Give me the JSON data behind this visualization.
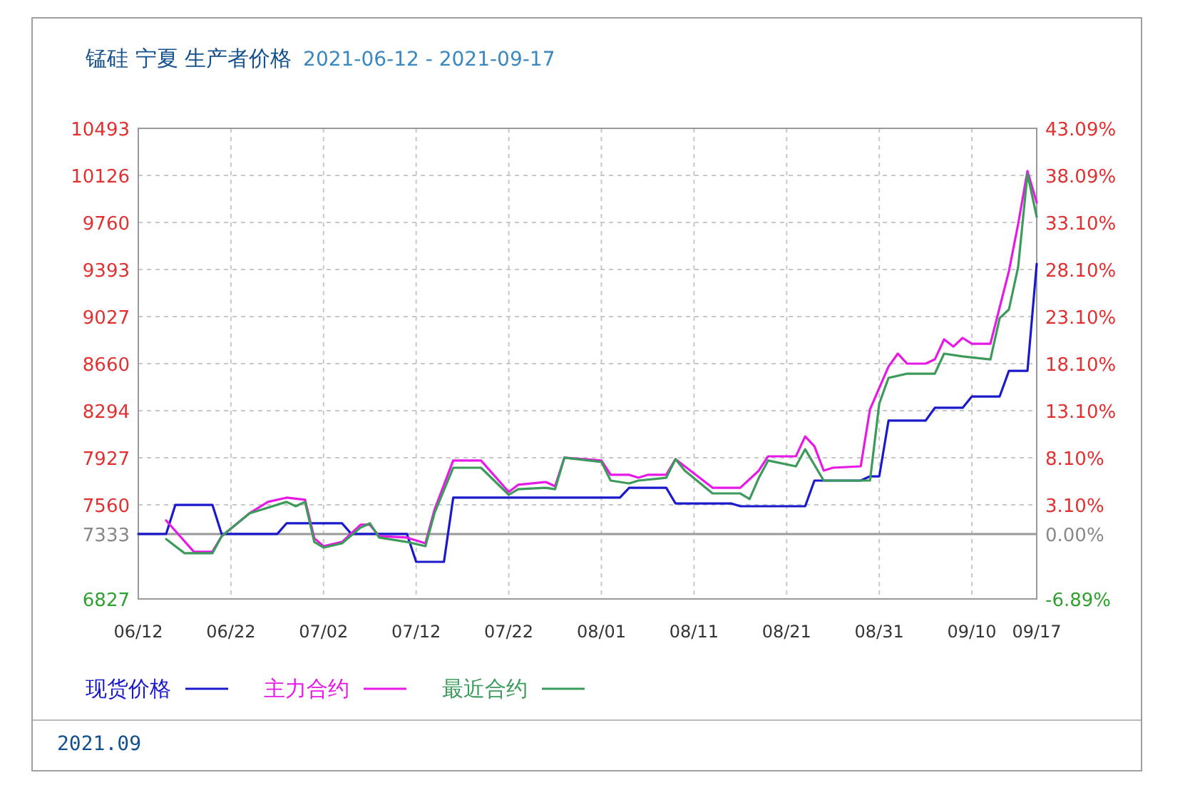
{
  "chart_data": {
    "type": "line",
    "title": "锰硅 宁夏 生产者价格",
    "subtitle": "2021-06-12 - 2021-09-17",
    "xlim": [
      "--06-12",
      "--09-17"
    ],
    "xticks": [
      {
        "value": "--06-12",
        "label": "06/12"
      },
      {
        "value": "--06-22",
        "label": "06/22"
      },
      {
        "value": "--07-02",
        "label": "07/02"
      },
      {
        "value": "--07-12",
        "label": "07/12"
      },
      {
        "value": "--07-22",
        "label": "07/22"
      },
      {
        "value": "--08-01",
        "label": "08/01"
      },
      {
        "value": "--08-11",
        "label": "08/11"
      },
      {
        "value": "--08-21",
        "label": "08/21"
      },
      {
        "value": "--08-31",
        "label": "08/31"
      },
      {
        "value": "--09-10",
        "label": "09/10"
      },
      {
        "value": "--09-17",
        "label": "09/17"
      }
    ],
    "ylim": [
      6827,
      10493
    ],
    "yticks": [
      6827,
      7333,
      7560,
      7927,
      8294,
      8660,
      9027,
      9393,
      9760,
      10126,
      10493
    ],
    "y2lim": [
      -6.89,
      43.09
    ],
    "y2ticks": [
      {
        "value": -6.89,
        "label": "-6.89%"
      },
      {
        "value": 0,
        "label": "0.00%"
      },
      {
        "value": 3.1,
        "label": "3.10%"
      },
      {
        "value": 8.1,
        "label": "8.10%"
      },
      {
        "value": 13.1,
        "label": "13.10%"
      },
      {
        "value": 18.1,
        "label": "18.10%"
      },
      {
        "value": 23.1,
        "label": "23.10%"
      },
      {
        "value": 28.1,
        "label": "28.10%"
      },
      {
        "value": 33.1,
        "label": "33.10%"
      },
      {
        "value": 38.09,
        "label": "38.09%"
      },
      {
        "value": 43.09,
        "label": "43.09%"
      }
    ],
    "grid": true,
    "legend": "bottom",
    "ref_lines": [
      {
        "axis": "y",
        "value": 7333,
        "color": "#999999"
      }
    ],
    "annotations": [
      "2021.09"
    ],
    "series": [
      {
        "name": "现货价格",
        "color": "#1a1acc",
        "x": [
          "--06-12",
          "--06-15",
          "--06-16",
          "--06-20",
          "--06-21",
          "--06-27",
          "--06-28",
          "--07-04",
          "--07-05",
          "--07-11",
          "--07-12",
          "--07-15",
          "--07-16",
          "--08-03",
          "--08-04",
          "--08-08",
          "--08-09",
          "--08-15",
          "--08-16",
          "--08-23",
          "--08-24",
          "--08-29",
          "--08-30",
          "--08-31",
          "--09-01",
          "--09-05",
          "--09-06",
          "--09-09",
          "--09-10",
          "--09-13",
          "--09-14",
          "--09-16",
          "--09-17"
        ],
        "values": [
          7333,
          7333,
          7560,
          7560,
          7333,
          7333,
          7416,
          7416,
          7333,
          7333,
          7116,
          7116,
          7616,
          7616,
          7693,
          7693,
          7571,
          7571,
          7549,
          7549,
          7749,
          7749,
          7782,
          7782,
          8216,
          8216,
          8316,
          8316,
          8404,
          8404,
          8604,
          8604,
          9437
        ]
      },
      {
        "name": "主力合约",
        "color": "#e619e6",
        "x": [
          "--06-15",
          "--06-18",
          "--06-20",
          "--06-21",
          "--06-24",
          "--06-26",
          "--06-28",
          "--06-30",
          "--07-01",
          "--07-02",
          "--07-04",
          "--07-06",
          "--07-07",
          "--07-08",
          "--07-11",
          "--07-13",
          "--07-14",
          "--07-16",
          "--07-19",
          "--07-22",
          "--07-23",
          "--07-26",
          "--07-27",
          "--07-28",
          "--08-01",
          "--08-02",
          "--08-04",
          "--08-05",
          "--08-06",
          "--08-08",
          "--08-09",
          "--08-10",
          "--08-13",
          "--08-16",
          "--08-18",
          "--08-19",
          "--08-22",
          "--08-23",
          "--08-24",
          "--08-25",
          "--08-26",
          "--08-29",
          "--08-30",
          "--09-01",
          "--09-02",
          "--09-03",
          "--09-05",
          "--09-06",
          "--09-07",
          "--09-08",
          "--09-09",
          "--09-10",
          "--09-12",
          "--09-14",
          "--09-15",
          "--09-16",
          "--09-17"
        ],
        "values": [
          7438,
          7194,
          7194,
          7316,
          7494,
          7583,
          7616,
          7600,
          7300,
          7238,
          7271,
          7405,
          7405,
          7316,
          7305,
          7260,
          7527,
          7905,
          7905,
          7660,
          7716,
          7738,
          7705,
          7927,
          7905,
          7794,
          7794,
          7771,
          7794,
          7794,
          7916,
          7860,
          7693,
          7693,
          7827,
          7938,
          7938,
          8093,
          8016,
          7827,
          7849,
          7860,
          8304,
          8637,
          8738,
          8660,
          8660,
          8693,
          8849,
          8793,
          8860,
          8815,
          8815,
          9382,
          9749,
          10160,
          9915
        ]
      },
      {
        "name": "最近合约",
        "color": "#3c9a5a",
        "x": [
          "--06-15",
          "--06-17",
          "--06-20",
          "--06-21",
          "--06-24",
          "--06-28",
          "--06-29",
          "--06-30",
          "--07-01",
          "--07-02",
          "--07-04",
          "--07-06",
          "--07-07",
          "--07-08",
          "--07-11",
          "--07-13",
          "--07-14",
          "--07-16",
          "--07-19",
          "--07-22",
          "--07-23",
          "--07-26",
          "--07-27",
          "--07-28",
          "--08-01",
          "--08-02",
          "--08-04",
          "--08-05",
          "--08-08",
          "--08-09",
          "--08-10",
          "--08-13",
          "--08-16",
          "--08-17",
          "--08-18",
          "--08-19",
          "--08-22",
          "--08-23",
          "--08-25",
          "--08-30",
          "--08-31",
          "--09-01",
          "--09-03",
          "--09-06",
          "--09-07",
          "--09-09",
          "--09-12",
          "--09-13",
          "--09-14",
          "--09-15",
          "--09-16",
          "--09-17"
        ],
        "values": [
          7293,
          7183,
          7183,
          7316,
          7494,
          7583,
          7549,
          7583,
          7271,
          7227,
          7260,
          7383,
          7416,
          7305,
          7271,
          7238,
          7500,
          7849,
          7849,
          7638,
          7682,
          7693,
          7682,
          7927,
          7894,
          7749,
          7727,
          7749,
          7771,
          7916,
          7827,
          7649,
          7649,
          7605,
          7771,
          7905,
          7860,
          7993,
          7749,
          7749,
          8349,
          8549,
          8582,
          8582,
          8738,
          8716,
          8693,
          9015,
          9082,
          9415,
          10138,
          9804
        ]
      }
    ]
  }
}
